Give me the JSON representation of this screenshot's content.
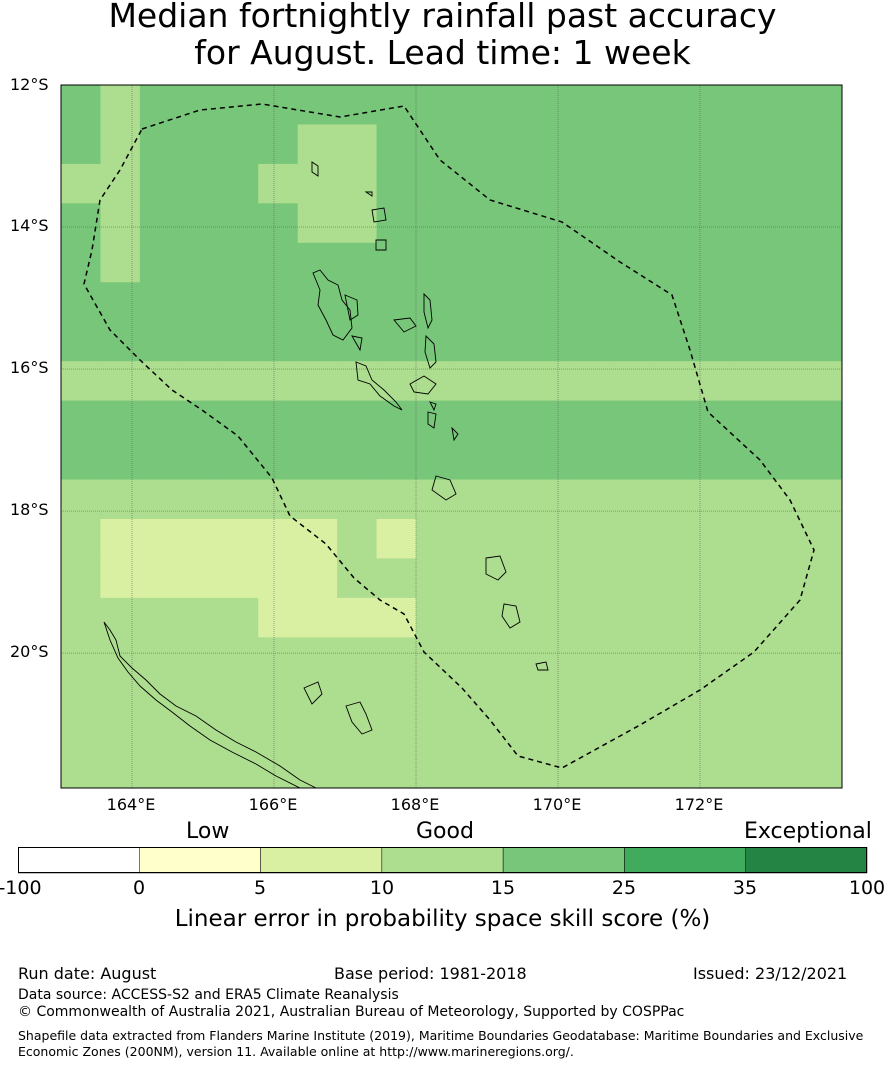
{
  "title": {
    "line1": "Median fortnightly rainfall past accuracy",
    "line2": "for August. Lead time: 1 week"
  },
  "map": {
    "lat_labels": [
      "12°S",
      "14°S",
      "16°S",
      "18°S",
      "20°S"
    ],
    "lon_labels": [
      "164°E",
      "166°E",
      "168°E",
      "170°E",
      "172°E"
    ],
    "lon_range": [
      163,
      174
    ],
    "lat_range": [
      -21.9,
      -12
    ],
    "cell_size_deg": 0.5556,
    "grid": [
      "4344444444444444444444444444",
      "4344443344444444444444444444",
      "3344433344444444444444444444",
      "4344443344444444444444444444",
      "4344444444444444444444444444",
      "4444444444444444444444444444",
      "4444444444444444444444444434",
      "3333333333333333333333333334",
      "4444444444444444444444444444",
      "4444444444444444444444444444",
      "3333333333333333333333333333",
      "3222222323333333333333333333",
      "3222222333333333333333333333",
      "3333322223333333333333333333",
      "3333333333333333333333333333",
      "3333333333333333333333333333",
      "3333333333333333333333333333",
      "3333333333333333333333333333"
    ],
    "colors_by_class": {
      "0": "#ffffff",
      "1": "#ffffcc",
      "2": "#d9f0a3",
      "3": "#addd8e",
      "4": "#78c679",
      "5": "#41ab5d",
      "6": "#238443"
    }
  },
  "colorbar": {
    "categories": [
      "Low",
      "Good",
      "Exceptional"
    ],
    "ticks": [
      "-100",
      "0",
      "5",
      "10",
      "15",
      "25",
      "35",
      "100"
    ],
    "colors": [
      "#ffffff",
      "#ffffcc",
      "#d9f0a3",
      "#addd8e",
      "#78c679",
      "#41ab5d",
      "#238443"
    ],
    "label": "Linear error in probability space skill score (%)"
  },
  "footer": {
    "run_date": "Run date: August",
    "base_period": "Base period: 1981-2018",
    "issued": "Issued: 23/12/2021",
    "data_source": "Data source: ACCESS-S2 and ERA5 Climate Reanalysis",
    "copyright": "© Commonwealth of Australia 2021, Australian Bureau of Meteorology, Supported by COSPPac",
    "shapefile_line1": "Shapefile data extracted from Flanders Marine Institute (2019), Maritime Boundaries Geodatabase: Maritime Boundaries and Exclusive",
    "shapefile_line2": "Economic Zones (200NM), version 11. Available online at http://www.marineregions.org/."
  }
}
